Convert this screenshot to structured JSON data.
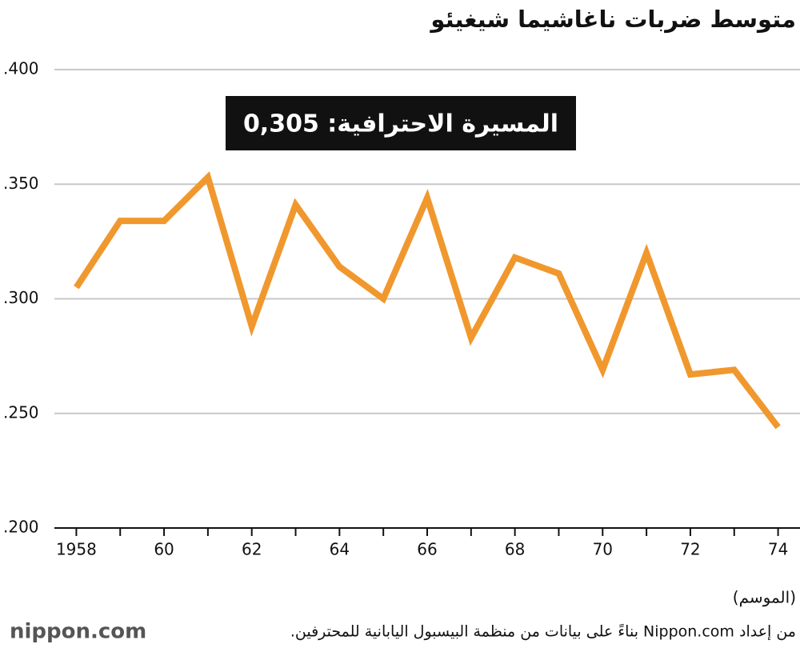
{
  "chart_data": {
    "type": "line",
    "title": "متوسط ضربات ناغاشيما شيغيئو",
    "x_label": "(الموسم)",
    "annotation": "المسيرة الاحترافية: 0,305",
    "source": "من إعداد Nippon.com بناءً على بيانات من منظمة البيسبول اليابانية للمحترفين.",
    "logo": "nippon.com",
    "x": [
      1958,
      1959,
      1960,
      1961,
      1962,
      1963,
      1964,
      1965,
      1966,
      1967,
      1968,
      1969,
      1970,
      1971,
      1972,
      1973,
      1974
    ],
    "series": [
      {
        "name": "متوسط الضربات",
        "color": "#f0982e",
        "values": [
          0.305,
          0.334,
          0.334,
          0.353,
          0.288,
          0.341,
          0.314,
          0.3,
          0.344,
          0.283,
          0.318,
          0.311,
          0.269,
          0.32,
          0.267,
          0.269,
          0.244
        ]
      }
    ],
    "xlim": [
      1957.5,
      1974.5
    ],
    "xticks": [
      1958,
      {
        "value": 1960,
        "label": "60"
      },
      {
        "value": 1962,
        "label": "62"
      },
      {
        "value": 1964,
        "label": "64"
      },
      {
        "value": 1966,
        "label": "66"
      },
      {
        "value": 1968,
        "label": "68"
      },
      {
        "value": 1970,
        "label": "70"
      },
      {
        "value": 1972,
        "label": "72"
      },
      {
        "value": 1974,
        "label": "74"
      }
    ],
    "x_minor_ticks": [
      1959,
      1961,
      1963,
      1965,
      1967,
      1969,
      1971,
      1973
    ],
    "ylim": [
      0.2,
      0.4
    ],
    "yticks": [
      {
        "value": 0.2,
        "label": ".200"
      },
      {
        "value": 0.25,
        "label": ".250"
      },
      {
        "value": 0.3,
        "label": ".300"
      },
      {
        "value": 0.35,
        "label": ".350"
      },
      {
        "value": 0.4,
        "label": ".400"
      }
    ],
    "grid": true
  }
}
